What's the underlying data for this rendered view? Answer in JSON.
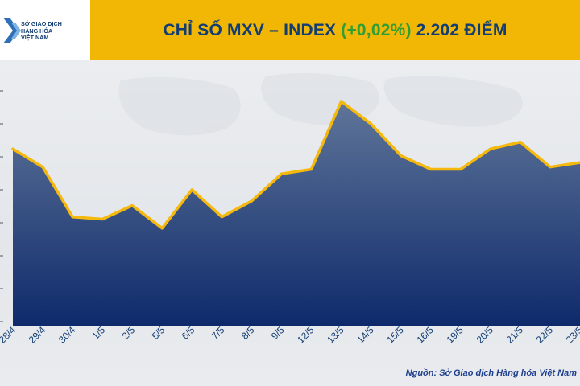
{
  "header": {
    "logo_lines": [
      "SỞ GIAO DỊCH",
      "HÀNG HÓA",
      "VIỆT NAM"
    ],
    "title_main": "CHỈ SỐ MXV – INDEX",
    "title_change": "(+0,02%)",
    "title_value": "2.202 ĐIỂM"
  },
  "colors": {
    "header_bg": "#f2b705",
    "title_text": "#123d73",
    "change_text": "#2e9e35",
    "line": "#f5b80d",
    "area_top": "#5f7599",
    "area_bottom": "#0e2a6b",
    "source_text": "#1f3f8f"
  },
  "chart_data": {
    "type": "area",
    "title": "CHỈ SỐ MXV – INDEX (+0,02%) 2.202 ĐIỂM",
    "x": [
      "28/4",
      "29/4",
      "30/4",
      "1/5",
      "2/5",
      "5/5",
      "6/5",
      "7/5",
      "8/5",
      "9/5",
      "12/5",
      "13/5",
      "14/5",
      "15/5",
      "16/5",
      "19/5",
      "20/5",
      "21/5",
      "22/5",
      "23/5"
    ],
    "series": [
      {
        "values": [
          2208,
          2200,
          2178,
          2177,
          2183,
          2173,
          2190,
          2178,
          2185,
          2197,
          2199,
          2229,
          2219,
          2205,
          2199,
          2199,
          2208,
          2211,
          2200,
          2202
        ]
      }
    ],
    "ylim": [
      2130,
      2240
    ],
    "y_ticks_visible": false,
    "grid": false,
    "legend": "none",
    "source": "Nguồn: Sở Giao dịch Hàng hóa Việt Nam"
  }
}
